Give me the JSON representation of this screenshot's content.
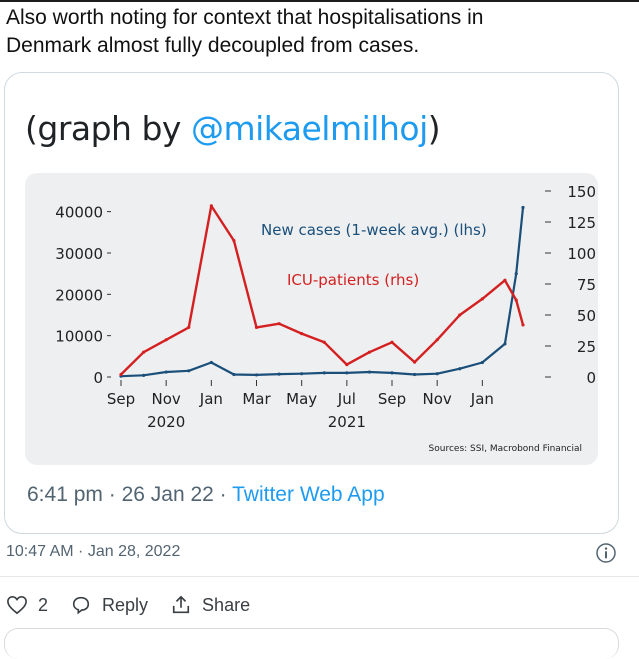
{
  "tweet": {
    "line1": "Also worth noting for context that hospitalisations in",
    "line2": "Denmark almost fully decoupled from cases."
  },
  "quoted": {
    "title_prefix": "(graph by ",
    "title_handle": "@mikaelmilhoj",
    "title_suffix": ")",
    "time": "6:41 pm",
    "date": "26 Jan 22",
    "separator": "·",
    "app": "Twitter Web App"
  },
  "footer": {
    "timestamp": "10:47 AM · Jan 28, 2022",
    "like_count": "2",
    "reply_label": "Reply",
    "share_label": "Share"
  },
  "colors": {
    "cases": "#1a4f7a",
    "icu": "#d42020",
    "link": "#1d9bf0"
  },
  "chart_data": {
    "type": "line",
    "x_tick_labels": [
      "Sep",
      "Nov",
      "Jan",
      "Mar",
      "May",
      "Jul",
      "Sep",
      "Nov",
      "Jan"
    ],
    "year_labels": [
      "2020",
      "2021"
    ],
    "y_left_ticks": [
      "0",
      "10000",
      "20000",
      "30000",
      "40000"
    ],
    "y_left_range": [
      0,
      45000
    ],
    "y_right_ticks": [
      "0",
      "25",
      "50",
      "75",
      "100",
      "125",
      "150"
    ],
    "y_right_range": [
      0,
      150
    ],
    "annotations": [
      "New cases (1-week avg.) (lhs)",
      "ICU-patients (rhs)"
    ],
    "source": "Sources: SSI, Macrobond Financial",
    "x_months": [
      0,
      1,
      2,
      3,
      4,
      5,
      6,
      7,
      8,
      9,
      10,
      11,
      12,
      13,
      14,
      15,
      16,
      17,
      17.5,
      17.8
    ],
    "series": [
      {
        "name": "New cases (1-week avg.) (lhs)",
        "axis": "left",
        "values": [
          200,
          400,
          1200,
          1500,
          3500,
          600,
          500,
          700,
          800,
          1000,
          1000,
          1200,
          1000,
          600,
          800,
          2000,
          3500,
          8000,
          25000,
          41000
        ]
      },
      {
        "name": "ICU-patients (rhs)",
        "axis": "right",
        "values": [
          2,
          20,
          30,
          40,
          138,
          110,
          40,
          43,
          35,
          28,
          10,
          20,
          28,
          12,
          30,
          50,
          63,
          78,
          62,
          42
        ]
      }
    ]
  }
}
